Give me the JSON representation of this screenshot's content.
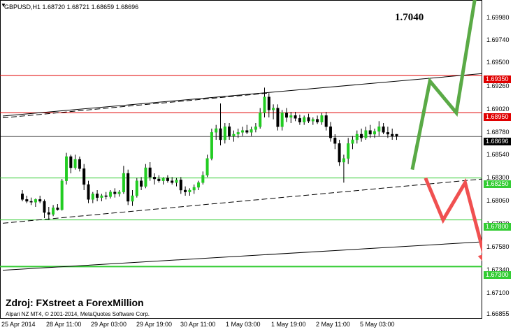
{
  "header": {
    "collapse_glyph": "▼",
    "symbol_info": "GBPUSD,H1  1.68720 1.68721 1.68659 1.68696"
  },
  "annotations": {
    "target_price": "1.7040",
    "source": "Zdroj: FXstreet a ForexMillion",
    "copyright": "Alpari NZ MT4, © 2001-2014, MetaQuotes Software Corp."
  },
  "price_axis": {
    "ticks": [
      "1.69980",
      "1.69740",
      "1.69500",
      "1.69260",
      "1.69020",
      "1.68780",
      "1.68540",
      "1.68300",
      "1.68060",
      "1.67820",
      "1.67580",
      "1.67340",
      "1.67100",
      "1.66855"
    ],
    "tags": [
      {
        "text": "1.69350",
        "kind": "resistance"
      },
      {
        "text": "1.68950",
        "kind": "resistance"
      },
      {
        "text": "1.68696",
        "kind": "current"
      },
      {
        "text": "1.68250",
        "kind": "support"
      },
      {
        "text": "1.67800",
        "kind": "support"
      },
      {
        "text": "1.67300",
        "kind": "support"
      }
    ]
  },
  "time_axis": {
    "labels": [
      "25 Apr 2014",
      "28 Apr 11:00",
      "29 Apr 03:00",
      "29 Apr 19:00",
      "30 Apr 11:00",
      "1 May 03:00",
      "1 May 19:00",
      "2 May 11:00",
      "5 May 03:00"
    ]
  },
  "colors": {
    "resistance": "#e00000",
    "support": "#33cc33",
    "current": "#000000",
    "bull_candle": "#22cc22",
    "bear_candle": "#000000",
    "up_arrow": "#5aaa46",
    "down_arrow": "#f05050",
    "trendline": "#000000"
  },
  "chart_data": {
    "type": "candlestick",
    "symbol": "GBPUSD",
    "timeframe": "H1",
    "last": {
      "open": 1.6872,
      "high": 1.68721,
      "low": 1.68659,
      "close": 1.68696
    },
    "ylim": [
      1.6677,
      1.701
    ],
    "horizontal_levels": [
      {
        "price": 1.6935,
        "kind": "resistance"
      },
      {
        "price": 1.6895,
        "kind": "resistance"
      },
      {
        "price": 1.68696,
        "kind": "current"
      },
      {
        "price": 1.6825,
        "kind": "support"
      },
      {
        "price": 1.678,
        "kind": "support"
      },
      {
        "price": 1.673,
        "kind": "support"
      }
    ],
    "trendlines": [
      {
        "style": "solid",
        "from": [
          0,
          1.68915
        ],
        "to": [
          116,
          1.694
        ]
      },
      {
        "style": "dashed",
        "from": [
          0,
          1.68895
        ],
        "to": [
          60,
          1.6916
        ]
      },
      {
        "style": "dashed",
        "from": [
          0,
          1.67765
        ],
        "to": [
          116,
          1.6827
        ]
      },
      {
        "style": "solid",
        "from": [
          0,
          1.6726
        ],
        "to": [
          116,
          1.67585
        ]
      }
    ],
    "forecast_up": {
      "points": [
        [
          93,
          1.6834
        ],
        [
          97,
          1.6929
        ],
        [
          103,
          1.6895
        ],
        [
          108,
          1.704
        ]
      ]
    },
    "forecast_down": {
      "points": [
        [
          96,
          1.6825
        ],
        [
          100,
          1.678
        ],
        [
          105,
          1.682
        ],
        [
          110,
          1.673
        ]
      ]
    },
    "candles": [
      [
        1.6808,
        1.6812,
        1.68,
        1.6802
      ],
      [
        1.6802,
        1.6806,
        1.6798,
        1.68
      ],
      [
        1.68,
        1.6804,
        1.6796,
        1.6799
      ],
      [
        1.6799,
        1.6803,
        1.6794,
        1.6802
      ],
      [
        1.6802,
        1.6806,
        1.6798,
        1.68
      ],
      [
        1.68,
        1.6802,
        1.6782,
        1.6788
      ],
      [
        1.6788,
        1.6794,
        1.678,
        1.6786
      ],
      [
        1.6786,
        1.6796,
        1.6784,
        1.6793
      ],
      [
        1.6793,
        1.6797,
        1.679,
        1.6791
      ],
      [
        1.6791,
        1.6824,
        1.679,
        1.6822
      ],
      [
        1.6822,
        1.6852,
        1.6818,
        1.6848
      ],
      [
        1.6848,
        1.685,
        1.683,
        1.6836
      ],
      [
        1.6836,
        1.685,
        1.6834,
        1.6845
      ],
      [
        1.6845,
        1.6848,
        1.6832,
        1.6835
      ],
      [
        1.6835,
        1.684,
        1.6812,
        1.6818
      ],
      [
        1.6818,
        1.6822,
        1.6798,
        1.6802
      ],
      [
        1.6802,
        1.681,
        1.6798,
        1.6808
      ],
      [
        1.6808,
        1.6812,
        1.68,
        1.6804
      ],
      [
        1.6804,
        1.6808,
        1.68,
        1.6806
      ],
      [
        1.6806,
        1.681,
        1.6802,
        1.6805
      ],
      [
        1.6805,
        1.6812,
        1.6803,
        1.681
      ],
      [
        1.681,
        1.6814,
        1.6804,
        1.6808
      ],
      [
        1.6808,
        1.6812,
        1.6805,
        1.681
      ],
      [
        1.681,
        1.6838,
        1.6808,
        1.683
      ],
      [
        1.683,
        1.6834,
        1.6796,
        1.68
      ],
      [
        1.68,
        1.6812,
        1.6795,
        1.6806
      ],
      [
        1.6806,
        1.6825,
        1.6804,
        1.6822
      ],
      [
        1.6822,
        1.6826,
        1.6812,
        1.6816
      ],
      [
        1.6816,
        1.684,
        1.6814,
        1.6836
      ],
      [
        1.6836,
        1.6842,
        1.6822,
        1.6826
      ],
      [
        1.6826,
        1.683,
        1.6818,
        1.6824
      ],
      [
        1.6824,
        1.6828,
        1.682,
        1.6822
      ],
      [
        1.6822,
        1.6826,
        1.6818,
        1.6825
      ],
      [
        1.6825,
        1.6828,
        1.682,
        1.6822
      ],
      [
        1.6822,
        1.6826,
        1.6818,
        1.682
      ],
      [
        1.682,
        1.6825,
        1.6816,
        1.6823
      ],
      [
        1.6823,
        1.6826,
        1.6808,
        1.6812
      ],
      [
        1.6812,
        1.6816,
        1.6806,
        1.681
      ],
      [
        1.681,
        1.6814,
        1.6806,
        1.6812
      ],
      [
        1.6812,
        1.6818,
        1.6808,
        1.6815
      ],
      [
        1.6815,
        1.6822,
        1.6812,
        1.682
      ],
      [
        1.682,
        1.6832,
        1.6818,
        1.6828
      ],
      [
        1.6828,
        1.685,
        1.6826,
        1.6846
      ],
      [
        1.6846,
        1.6878,
        1.6844,
        1.6874
      ],
      [
        1.6874,
        1.6882,
        1.6866,
        1.6878
      ],
      [
        1.6878,
        1.6905,
        1.686,
        1.6866
      ],
      [
        1.6866,
        1.6884,
        1.6862,
        1.688
      ],
      [
        1.688,
        1.6884,
        1.6866,
        1.687
      ],
      [
        1.687,
        1.6876,
        1.6864,
        1.6872
      ],
      [
        1.6872,
        1.6878,
        1.6868,
        1.6874
      ],
      [
        1.6874,
        1.688,
        1.687,
        1.6876
      ],
      [
        1.6876,
        1.6882,
        1.6872,
        1.6874
      ],
      [
        1.6874,
        1.688,
        1.687,
        1.6877
      ],
      [
        1.6877,
        1.6884,
        1.6874,
        1.688
      ],
      [
        1.688,
        1.69,
        1.6878,
        1.6895
      ],
      [
        1.6895,
        1.6922,
        1.689,
        1.6912
      ],
      [
        1.6912,
        1.6916,
        1.689,
        1.6898
      ],
      [
        1.6898,
        1.6904,
        1.6888,
        1.69
      ],
      [
        1.69,
        1.6904,
        1.6876,
        1.688
      ],
      [
        1.688,
        1.6898,
        1.6876,
        1.6895
      ],
      [
        1.6895,
        1.69,
        1.6885,
        1.689
      ],
      [
        1.689,
        1.6896,
        1.6884,
        1.6892
      ],
      [
        1.6892,
        1.6896,
        1.6886,
        1.6889
      ],
      [
        1.6889,
        1.6893,
        1.6882,
        1.6885
      ],
      [
        1.6885,
        1.6892,
        1.6882,
        1.689
      ],
      [
        1.689,
        1.6894,
        1.6884,
        1.6886
      ],
      [
        1.6886,
        1.689,
        1.6882,
        1.6888
      ],
      [
        1.6888,
        1.6892,
        1.6883,
        1.6885
      ],
      [
        1.6885,
        1.6895,
        1.6882,
        1.6892
      ],
      [
        1.6892,
        1.6896,
        1.6876,
        1.688
      ],
      [
        1.688,
        1.6885,
        1.6864,
        1.6868
      ],
      [
        1.6868,
        1.6872,
        1.6856,
        1.6862
      ],
      [
        1.6862,
        1.6866,
        1.6838,
        1.6842
      ],
      [
        1.6842,
        1.685,
        1.682,
        1.6846
      ],
      [
        1.6846,
        1.6868,
        1.684,
        1.6862
      ],
      [
        1.6862,
        1.687,
        1.6856,
        1.6866
      ],
      [
        1.6866,
        1.6876,
        1.6862,
        1.6872
      ],
      [
        1.6872,
        1.6878,
        1.6864,
        1.6868
      ],
      [
        1.6868,
        1.688,
        1.6866,
        1.6876
      ],
      [
        1.6876,
        1.6882,
        1.6868,
        1.6872
      ],
      [
        1.6872,
        1.6878,
        1.6868,
        1.6875
      ],
      [
        1.6875,
        1.6886,
        1.687,
        1.688
      ],
      [
        1.688,
        1.6884,
        1.6872,
        1.6874
      ],
      [
        1.6874,
        1.688,
        1.6868,
        1.6872
      ],
      [
        1.6872,
        1.6878,
        1.6866,
        1.687
      ],
      [
        1.6872,
        1.68721,
        1.68659,
        1.68696
      ]
    ]
  }
}
